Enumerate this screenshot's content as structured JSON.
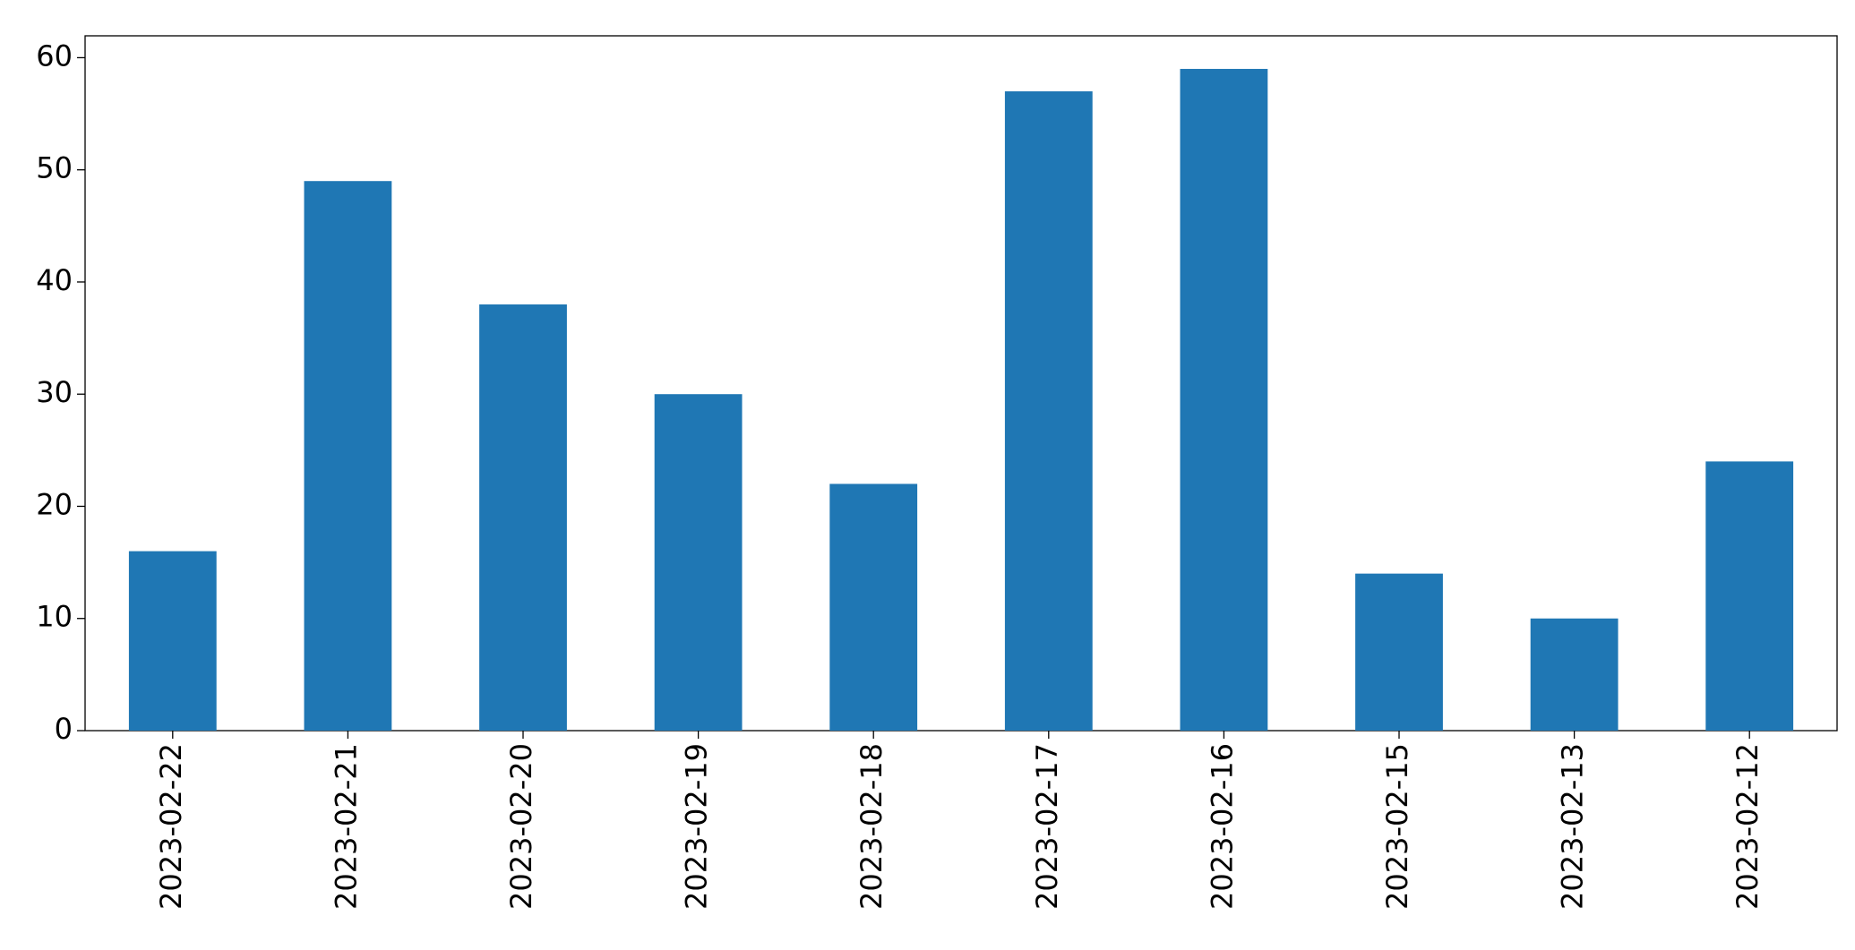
{
  "chart_data": {
    "type": "bar",
    "categories": [
      "2023-02-22",
      "2023-02-21",
      "2023-02-20",
      "2023-02-19",
      "2023-02-18",
      "2023-02-17",
      "2023-02-16",
      "2023-02-15",
      "2023-02-13",
      "2023-02-12"
    ],
    "values": [
      16,
      49,
      38,
      30,
      22,
      57,
      59,
      14,
      10,
      24
    ],
    "color": "#1f77b4",
    "ylim": [
      0,
      61.95
    ],
    "yticks": [
      0,
      10,
      20,
      30,
      40,
      50,
      60
    ],
    "grid": false
  }
}
